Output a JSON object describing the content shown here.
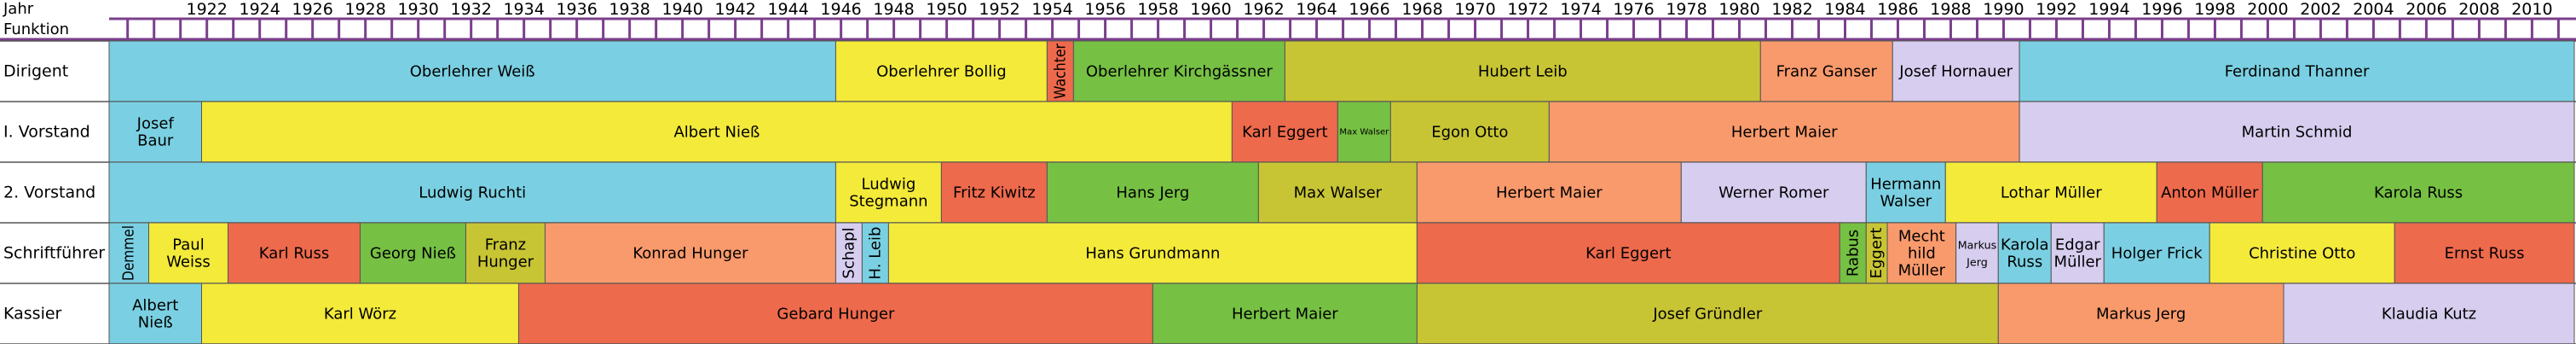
{
  "header": {
    "year_label": "Jahr",
    "function_label": "Funktion"
  },
  "chart_data": {
    "type": "timeline",
    "xlim": [
      1918.3,
      2011.6
    ],
    "x_ticks": [
      1922,
      1924,
      1926,
      1928,
      1930,
      1932,
      1934,
      1936,
      1938,
      1940,
      1942,
      1944,
      1946,
      1948,
      1950,
      1952,
      1954,
      1956,
      1958,
      1960,
      1962,
      1964,
      1966,
      1968,
      1970,
      1972,
      1974,
      1976,
      1978,
      1980,
      1982,
      1984,
      1986,
      1988,
      1990,
      1992,
      1994,
      1996,
      1998,
      2000,
      2002,
      2004,
      2006,
      2008,
      2010
    ],
    "rows": [
      {
        "name": "Dirigent",
        "segments": [
          {
            "label": "Oberlehrer Weiß",
            "start": 1918.3,
            "end": 1945.8,
            "color": "#7ad0e2"
          },
          {
            "label": "Oberlehrer Bollig",
            "start": 1945.8,
            "end": 1953.8,
            "color": "#f4ea3a"
          },
          {
            "label": "Wachter",
            "start": 1953.8,
            "end": 1954.8,
            "color": "#ee6a4c",
            "vertical": true
          },
          {
            "label": "Oberlehrer Kirchgässner",
            "start": 1954.8,
            "end": 1962.8,
            "color": "#76c043"
          },
          {
            "label": "Hubert Leib",
            "start": 1962.8,
            "end": 1980.8,
            "color": "#c8c534"
          },
          {
            "label": "Franz Ganser",
            "start": 1980.8,
            "end": 1985.8,
            "color": "#f99a6c"
          },
          {
            "label": "Josef Hornauer",
            "start": 1985.8,
            "end": 1990.6,
            "color": "#d6cdef"
          },
          {
            "label": "Ferdinand Thanner",
            "start": 1990.6,
            "end": 2011.6,
            "color": "#7ad0e2"
          }
        ]
      },
      {
        "name": "I. Vorstand",
        "segments": [
          {
            "label": "Josef\nBaur",
            "start": 1918.3,
            "end": 1921.8,
            "color": "#7ad0e2"
          },
          {
            "label": "Albert Nieß",
            "start": 1921.8,
            "end": 1960.8,
            "color": "#f4ea3a"
          },
          {
            "label": "Karl Eggert",
            "start": 1960.8,
            "end": 1964.8,
            "color": "#ee6a4c"
          },
          {
            "label": "Max Walser",
            "start": 1964.8,
            "end": 1966.8,
            "color": "#76c043"
          },
          {
            "label": "Egon Otto",
            "start": 1966.8,
            "end": 1972.8,
            "color": "#c8c534"
          },
          {
            "label": "Herbert Maier",
            "start": 1972.8,
            "end": 1990.6,
            "color": "#f99a6c"
          },
          {
            "label": "Martin Schmid",
            "start": 1990.6,
            "end": 2011.6,
            "color": "#d6cdef"
          }
        ]
      },
      {
        "name": "2. Vorstand",
        "segments": [
          {
            "label": "Ludwig Ruchti",
            "start": 1918.3,
            "end": 1945.8,
            "color": "#7ad0e2"
          },
          {
            "label": "Ludwig\nStegmann",
            "start": 1945.8,
            "end": 1949.8,
            "color": "#f4ea3a"
          },
          {
            "label": "Fritz Kiwitz",
            "start": 1949.8,
            "end": 1953.8,
            "color": "#ee6a4c"
          },
          {
            "label": "Hans Jerg",
            "start": 1953.8,
            "end": 1961.8,
            "color": "#76c043"
          },
          {
            "label": "Max Walser",
            "start": 1961.8,
            "end": 1967.8,
            "color": "#c8c534"
          },
          {
            "label": "Herbert Maier",
            "start": 1967.8,
            "end": 1977.8,
            "color": "#f99a6c"
          },
          {
            "label": "Werner Romer",
            "start": 1977.8,
            "end": 1984.8,
            "color": "#d6cdef"
          },
          {
            "label": "Hermann\nWalser",
            "start": 1984.8,
            "end": 1987.8,
            "color": "#7ad0e2"
          },
          {
            "label": "Lothar Müller",
            "start": 1987.8,
            "end": 1995.8,
            "color": "#f4ea3a"
          },
          {
            "label": "Anton Müller",
            "start": 1995.8,
            "end": 1999.8,
            "color": "#ee6a4c"
          },
          {
            "label": "Karola Russ",
            "start": 1999.8,
            "end": 2011.6,
            "color": "#76c043"
          }
        ]
      },
      {
        "name": "Schriftführer",
        "segments": [
          {
            "label": "Demmel",
            "start": 1918.3,
            "end": 1919.8,
            "color": "#7ad0e2",
            "vertical": true
          },
          {
            "label": "Paul\nWeiss",
            "start": 1919.8,
            "end": 1922.8,
            "color": "#f4ea3a"
          },
          {
            "label": "Karl Russ",
            "start": 1922.8,
            "end": 1927.8,
            "color": "#ee6a4c"
          },
          {
            "label": "Georg Nieß",
            "start": 1927.8,
            "end": 1931.8,
            "color": "#76c043"
          },
          {
            "label": "Franz\nHunger",
            "start": 1931.8,
            "end": 1934.8,
            "color": "#c8c534"
          },
          {
            "label": "Konrad Hunger",
            "start": 1934.8,
            "end": 1945.8,
            "color": "#f99a6c"
          },
          {
            "label": "Schapl",
            "start": 1945.8,
            "end": 1946.8,
            "color": "#d6cdef",
            "vertical": true
          },
          {
            "label": "H. Leib",
            "start": 1946.8,
            "end": 1947.8,
            "color": "#7ad0e2",
            "vertical": true
          },
          {
            "label": "Hans Grundmann",
            "start": 1947.8,
            "end": 1967.8,
            "color": "#f4ea3a"
          },
          {
            "label": "Karl Eggert",
            "start": 1967.8,
            "end": 1983.8,
            "color": "#ee6a4c"
          },
          {
            "label": "Rabus",
            "start": 1983.8,
            "end": 1984.8,
            "color": "#76c043",
            "vertical": true
          },
          {
            "label": "Eggert",
            "start": 1984.8,
            "end": 1985.6,
            "color": "#c8c534",
            "vertical": true
          },
          {
            "label": "Mecht\nhild\nMüller",
            "start": 1985.6,
            "end": 1988.2,
            "color": "#f99a6c"
          },
          {
            "label": "Markus\nJerg",
            "start": 1988.2,
            "end": 1989.8,
            "color": "#d6cdef"
          },
          {
            "label": "Karola\nRuss",
            "start": 1989.8,
            "end": 1991.8,
            "color": "#7ad0e2"
          },
          {
            "label": "Edgar\nMüller",
            "start": 1991.8,
            "end": 1993.8,
            "color": "#d6cdef"
          },
          {
            "label": "Holger Frick",
            "start": 1993.8,
            "end": 1997.8,
            "color": "#7ad0e2"
          },
          {
            "label": "Christine Otto",
            "start": 1997.8,
            "end": 2004.8,
            "color": "#f4ea3a"
          },
          {
            "label": "Ernst Russ",
            "start": 2004.8,
            "end": 2011.6,
            "color": "#ee6a4c"
          }
        ]
      },
      {
        "name": "Kassier",
        "segments": [
          {
            "label": "Albert\nNieß",
            "start": 1918.3,
            "end": 1921.8,
            "color": "#7ad0e2"
          },
          {
            "label": "Karl Wörz",
            "start": 1921.8,
            "end": 1933.8,
            "color": "#f4ea3a"
          },
          {
            "label": "Gebard Hunger",
            "start": 1933.8,
            "end": 1957.8,
            "color": "#ee6a4c"
          },
          {
            "label": "Herbert Maier",
            "start": 1957.8,
            "end": 1967.8,
            "color": "#76c043"
          },
          {
            "label": "Josef Gründler",
            "start": 1967.8,
            "end": 1989.8,
            "color": "#c8c534"
          },
          {
            "label": "Markus Jerg",
            "start": 1989.8,
            "end": 2000.6,
            "color": "#f99a6c"
          },
          {
            "label": "Klaudia Kutz",
            "start": 2000.6,
            "end": 2011.6,
            "color": "#d6cdef"
          }
        ]
      }
    ]
  }
}
